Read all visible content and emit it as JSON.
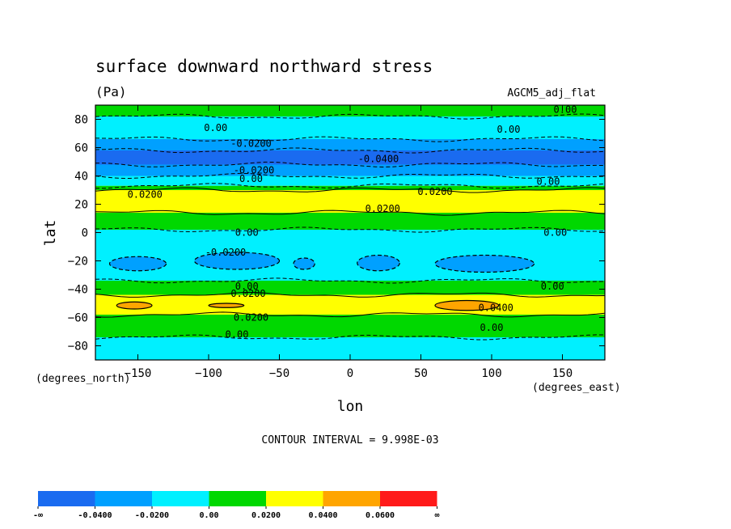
{
  "chart_data": {
    "type": "contour",
    "title": "surface downward northward stress",
    "units_label": "(Pa)",
    "dataset_label": "AGCM5_adj_flat",
    "xlabel": "lon",
    "ylabel": "lat",
    "x_units": "(degrees_east)",
    "y_units": "(degrees_north)",
    "xlim": [
      -180,
      180
    ],
    "ylim": [
      -90,
      90
    ],
    "x_ticks": [
      -150,
      -100,
      -50,
      0,
      50,
      100,
      150
    ],
    "y_ticks": [
      80,
      60,
      40,
      20,
      0,
      -20,
      -40,
      -60,
      -80
    ],
    "contour_interval_text": "CONTOUR INTERVAL = 9.998E-03",
    "colorbar": {
      "labels": [
        "-∞",
        "-0.0400",
        "-0.0200",
        "0.00",
        "0.0200",
        "0.0400",
        "0.0600",
        "∞"
      ],
      "colors": [
        "#1a6bf0",
        "#00a0ff",
        "#00f0ff",
        "#00d800",
        "#ffff00",
        "#ffa500",
        "#ff1a1a"
      ]
    },
    "bands": [
      {
        "lat_max": 90,
        "lat_min": 82,
        "value": 0.005,
        "color": "#00d800"
      },
      {
        "lat_max": 82,
        "lat_min": 66,
        "value": -0.005,
        "color": "#00f0ff"
      },
      {
        "lat_max": 66,
        "lat_min": 58,
        "value": -0.025,
        "color": "#00a0ff"
      },
      {
        "lat_max": 58,
        "lat_min": 48,
        "value": -0.045,
        "color": "#1a6bf0"
      },
      {
        "lat_max": 48,
        "lat_min": 40,
        "value": -0.025,
        "color": "#00a0ff"
      },
      {
        "lat_max": 40,
        "lat_min": 33,
        "value": -0.005,
        "color": "#00f0ff"
      },
      {
        "lat_max": 33,
        "lat_min": 30,
        "value": 0.005,
        "color": "#00d800"
      },
      {
        "lat_max": 30,
        "lat_min": 14,
        "value": 0.025,
        "color": "#ffff00"
      },
      {
        "lat_max": 14,
        "lat_min": 2,
        "value": 0.005,
        "color": "#00d800"
      },
      {
        "lat_max": 2,
        "lat_min": -34,
        "value": -0.005,
        "color": "#00f0ff"
      },
      {
        "lat_max": -34,
        "lat_min": -44,
        "value": 0.005,
        "color": "#00d800"
      },
      {
        "lat_max": -44,
        "lat_min": -58,
        "value": 0.025,
        "color": "#ffff00"
      },
      {
        "lat_max": -58,
        "lat_min": -74,
        "value": 0.005,
        "color": "#00d800"
      },
      {
        "lat_max": -74,
        "lat_min": -90,
        "value": -0.005,
        "color": "#00f0ff"
      }
    ],
    "patches": [
      {
        "lon": [
          -110,
          -50
        ],
        "lat": [
          -26,
          -14
        ],
        "value": -0.025,
        "color": "#00a0ff"
      },
      {
        "lon": [
          -40,
          -25
        ],
        "lat": [
          -26,
          -18
        ],
        "value": -0.025,
        "color": "#00a0ff"
      },
      {
        "lon": [
          5,
          35
        ],
        "lat": [
          -27,
          -16
        ],
        "value": -0.025,
        "color": "#00a0ff"
      },
      {
        "lon": [
          60,
          130
        ],
        "lat": [
          -28,
          -16
        ],
        "value": -0.025,
        "color": "#00a0ff"
      },
      {
        "lon": [
          -170,
          -130
        ],
        "lat": [
          -27,
          -17
        ],
        "value": -0.025,
        "color": "#00a0ff"
      },
      {
        "lon": [
          60,
          105
        ],
        "lat": [
          -55,
          -48
        ],
        "value": 0.045,
        "color": "#ffa500"
      },
      {
        "lon": [
          -165,
          -140
        ],
        "lat": [
          -54,
          -49
        ],
        "value": 0.045,
        "color": "#ffa500"
      },
      {
        "lon": [
          -100,
          -75
        ],
        "lat": [
          -53,
          -50
        ],
        "value": 0.045,
        "color": "#ffa500"
      }
    ],
    "contour_labels": [
      {
        "text": "0.00",
        "lon": -95,
        "lat": 74
      },
      {
        "text": "0.00",
        "lon": 112,
        "lat": 73
      },
      {
        "text": "0.00",
        "lon": 152,
        "lat": 87
      },
      {
        "text": "-0.0200",
        "lon": -70,
        "lat": 63
      },
      {
        "text": "-0.0200",
        "lon": -68,
        "lat": 44
      },
      {
        "text": "-0.0400",
        "lon": 20,
        "lat": 52
      },
      {
        "text": "0.00",
        "lon": -70,
        "lat": 38
      },
      {
        "text": "0.00",
        "lon": 140,
        "lat": 36
      },
      {
        "text": "0.0200",
        "lon": -145,
        "lat": 27
      },
      {
        "text": "0.0200",
        "lon": 60,
        "lat": 29
      },
      {
        "text": "0.0200",
        "lon": 23,
        "lat": 17
      },
      {
        "text": "0.00",
        "lon": -73,
        "lat": 0
      },
      {
        "text": "0.00",
        "lon": 145,
        "lat": 0
      },
      {
        "text": "-0.0200",
        "lon": -88,
        "lat": -14
      },
      {
        "text": "0.00",
        "lon": -73,
        "lat": -38
      },
      {
        "text": "0.00",
        "lon": 143,
        "lat": -38
      },
      {
        "text": "0.0200",
        "lon": -72,
        "lat": -43
      },
      {
        "text": "0.0400",
        "lon": 103,
        "lat": -53
      },
      {
        "text": "0.0200",
        "lon": -70,
        "lat": -60
      },
      {
        "text": "0.00",
        "lon": 100,
        "lat": -67
      },
      {
        "text": "0.00",
        "lon": -80,
        "lat": -72
      }
    ]
  }
}
